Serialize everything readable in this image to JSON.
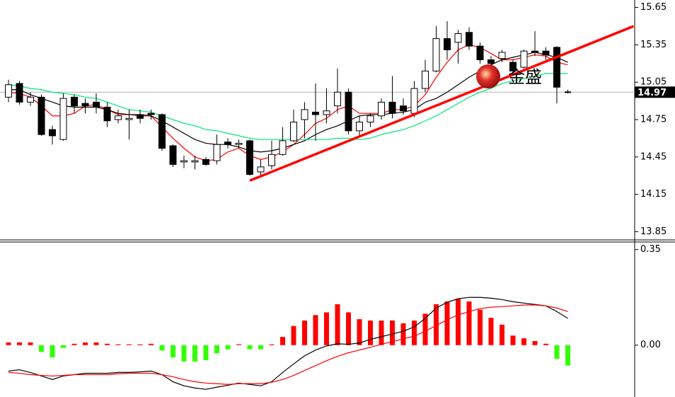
{
  "chart_data": [
    {
      "type": "candlestick",
      "open": [
        14.93,
        15.04,
        14.89,
        14.93,
        14.67,
        14.59,
        14.93,
        14.88,
        14.89,
        14.85,
        14.75,
        14.75,
        14.79,
        14.8,
        14.79,
        14.54,
        14.41,
        14.41,
        14.43,
        14.42,
        14.57,
        14.55,
        14.58,
        14.33,
        14.38,
        14.47,
        14.58,
        14.75,
        14.81,
        14.79,
        14.86,
        14.97,
        14.66,
        14.73,
        14.78,
        14.89,
        14.86,
        14.8,
        15.0,
        15.14,
        15.4,
        15.37,
        15.45,
        15.34,
        15.23,
        15.24,
        15.21,
        15.17,
        15.3,
        15.3,
        15.33,
        14.97
      ],
      "high": [
        15.07,
        15.06,
        14.97,
        14.95,
        14.7,
        14.96,
        14.95,
        14.92,
        14.96,
        14.89,
        14.83,
        14.83,
        14.83,
        14.83,
        14.8,
        14.55,
        14.46,
        14.46,
        14.45,
        14.63,
        14.6,
        14.59,
        14.59,
        14.43,
        14.58,
        14.69,
        14.83,
        14.89,
        15.04,
        15.0,
        15.16,
        15.0,
        14.78,
        14.8,
        14.92,
        15.1,
        14.92,
        15.06,
        15.23,
        15.5,
        15.54,
        15.47,
        15.49,
        15.37,
        15.26,
        15.31,
        15.23,
        15.31,
        15.46,
        15.33,
        15.34,
        14.99
      ],
      "low": [
        14.89,
        14.87,
        14.86,
        14.62,
        14.55,
        14.58,
        14.8,
        14.8,
        14.8,
        14.69,
        14.72,
        14.59,
        14.72,
        14.75,
        14.5,
        14.37,
        14.36,
        14.35,
        14.38,
        14.39,
        14.52,
        14.52,
        14.3,
        14.3,
        14.35,
        14.46,
        14.57,
        14.6,
        14.58,
        14.72,
        14.8,
        14.63,
        14.62,
        14.69,
        14.75,
        14.76,
        14.79,
        14.77,
        14.97,
        15.13,
        15.23,
        15.2,
        15.31,
        15.2,
        15.17,
        15.21,
        15.12,
        15.16,
        15.26,
        15.23,
        14.88,
        14.96
      ],
      "close": [
        15.03,
        14.89,
        14.93,
        14.63,
        14.62,
        14.92,
        14.86,
        14.86,
        14.85,
        14.74,
        14.78,
        14.76,
        14.76,
        14.79,
        14.52,
        14.39,
        14.42,
        14.42,
        14.39,
        14.55,
        14.55,
        14.56,
        14.31,
        14.37,
        14.47,
        14.58,
        14.73,
        14.83,
        14.79,
        14.82,
        14.97,
        14.66,
        14.73,
        14.78,
        14.89,
        14.8,
        14.82,
        15.0,
        15.14,
        15.4,
        15.31,
        15.44,
        15.34,
        15.23,
        15.2,
        15.29,
        15.14,
        15.3,
        15.29,
        15.27,
        15.01,
        14.97
      ],
      "series": [
        {
          "color": "#ff0000",
          "values": [
            14.97,
            14.96,
            14.93,
            14.86,
            14.78,
            14.78,
            14.8,
            14.86,
            14.87,
            14.83,
            14.79,
            14.79,
            14.78,
            14.78,
            14.69,
            14.6,
            14.52,
            14.45,
            14.42,
            14.43,
            14.49,
            14.52,
            14.46,
            14.43,
            14.45,
            14.49,
            14.55,
            14.63,
            14.72,
            14.76,
            14.83,
            14.86,
            14.8,
            14.8,
            14.8,
            14.83,
            14.83,
            14.86,
            14.95,
            15.09,
            15.21,
            15.31,
            15.35,
            15.33,
            15.28,
            15.23,
            15.23,
            15.25,
            15.27,
            15.26,
            15.21,
            15.19
          ]
        },
        {
          "color": "#000000",
          "values": [
            14.99,
            14.99,
            14.95,
            14.92,
            14.89,
            14.86,
            14.85,
            14.85,
            14.85,
            14.83,
            14.8,
            14.79,
            14.79,
            14.78,
            14.74,
            14.69,
            14.64,
            14.59,
            14.56,
            14.55,
            14.55,
            14.53,
            14.5,
            14.49,
            14.5,
            14.52,
            14.55,
            14.58,
            14.63,
            14.67,
            14.7,
            14.74,
            14.78,
            14.79,
            14.79,
            14.8,
            14.81,
            14.83,
            14.89,
            14.92,
            14.97,
            15.03,
            15.09,
            15.14,
            15.19,
            15.23,
            15.25,
            15.27,
            15.29,
            15.27,
            15.25,
            15.21
          ]
        },
        {
          "color": "#00e676",
          "values": [
            15.03,
            15.02,
            15.0,
            14.99,
            14.97,
            14.96,
            14.95,
            14.93,
            14.92,
            14.89,
            14.86,
            14.83,
            14.82,
            14.81,
            14.78,
            14.75,
            14.72,
            14.7,
            14.67,
            14.66,
            14.64,
            14.62,
            14.6,
            14.59,
            14.59,
            14.59,
            14.59,
            14.59,
            14.59,
            14.59,
            14.6,
            14.6,
            14.59,
            14.6,
            14.63,
            14.65,
            14.67,
            14.7,
            14.74,
            14.78,
            14.83,
            14.88,
            14.93,
            14.97,
            15.0,
            15.04,
            15.06,
            15.08,
            15.1,
            15.12,
            15.12,
            15.12
          ]
        }
      ],
      "trendline": {
        "x": [
          22,
          57
        ],
        "y": [
          14.26,
          15.5
        ],
        "color": "#ff0000"
      },
      "last_price": 14.97,
      "watermark": "金盛",
      "ylim": [
        13.79,
        15.71
      ],
      "yticks": [
        15.65,
        15.35,
        15.05,
        14.75,
        14.45,
        14.15,
        13.85
      ]
    },
    {
      "type": "macd",
      "histogram": [
        0.01,
        0.01,
        0.01,
        -0.025,
        -0.045,
        -0.01,
        0.005,
        0.01,
        0.01,
        0.005,
        0.003,
        0.003,
        0.003,
        0.005,
        -0.02,
        -0.045,
        -0.06,
        -0.06,
        -0.055,
        -0.03,
        -0.015,
        0.003,
        -0.015,
        -0.015,
        0.003,
        0.03,
        0.07,
        0.09,
        0.11,
        0.12,
        0.15,
        0.12,
        0.095,
        0.09,
        0.09,
        0.09,
        0.08,
        0.09,
        0.115,
        0.15,
        0.16,
        0.17,
        0.16,
        0.13,
        0.1,
        0.075,
        0.035,
        0.025,
        0.015,
        0.005,
        -0.05,
        -0.075
      ],
      "positive_color": "#ff0000",
      "negative_color": "#33ff00",
      "series": [
        {
          "color": "#000000",
          "values": [
            -0.095,
            -0.09,
            -0.1,
            -0.113,
            -0.126,
            -0.113,
            -0.108,
            -0.103,
            -0.103,
            -0.103,
            -0.1,
            -0.1,
            -0.098,
            -0.095,
            -0.108,
            -0.134,
            -0.149,
            -0.157,
            -0.162,
            -0.154,
            -0.147,
            -0.139,
            -0.144,
            -0.149,
            -0.134,
            -0.1,
            -0.069,
            -0.039,
            -0.018,
            -0.003,
            0.005,
            0.003,
            0.008,
            0.021,
            0.031,
            0.041,
            0.051,
            0.067,
            0.098,
            0.136,
            0.157,
            0.17,
            0.175,
            0.175,
            0.172,
            0.167,
            0.159,
            0.154,
            0.149,
            0.144,
            0.123,
            0.098
          ]
        },
        {
          "color": "#ff0000",
          "values": [
            -0.1,
            -0.103,
            -0.108,
            -0.111,
            -0.113,
            -0.111,
            -0.108,
            -0.108,
            -0.108,
            -0.108,
            -0.105,
            -0.103,
            -0.103,
            -0.103,
            -0.108,
            -0.116,
            -0.126,
            -0.134,
            -0.139,
            -0.141,
            -0.144,
            -0.141,
            -0.141,
            -0.141,
            -0.136,
            -0.126,
            -0.111,
            -0.093,
            -0.075,
            -0.057,
            -0.041,
            -0.028,
            -0.018,
            -0.008,
            0.003,
            0.013,
            0.023,
            0.033,
            0.051,
            0.072,
            0.093,
            0.111,
            0.123,
            0.134,
            0.139,
            0.141,
            0.144,
            0.147,
            0.147,
            0.144,
            0.136,
            0.123
          ]
        }
      ],
      "ylim": [
        -0.19,
        0.37
      ],
      "yticks": [
        0.35,
        {
          "value": 0,
          "label": "0.00"
        }
      ]
    }
  ]
}
